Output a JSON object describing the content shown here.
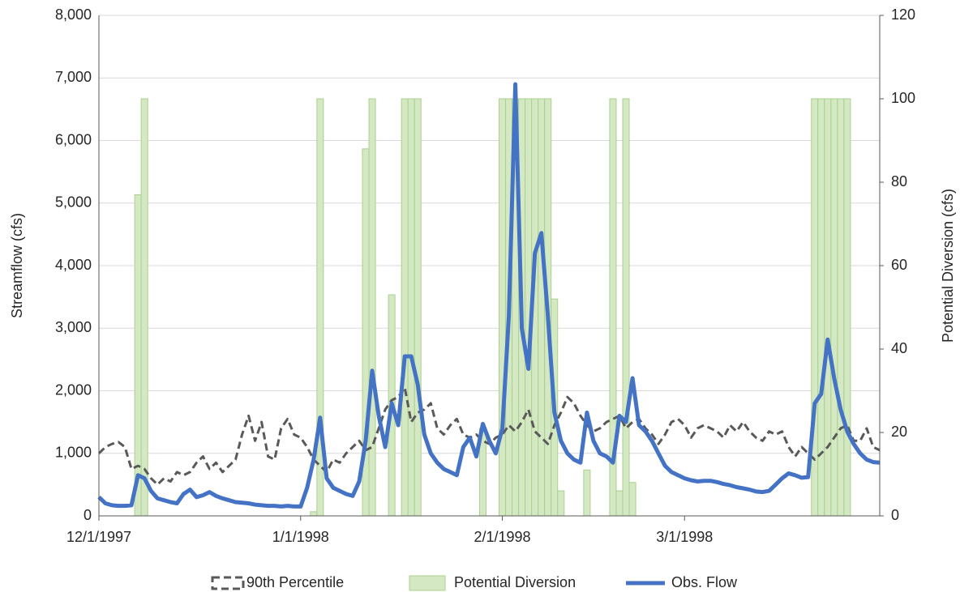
{
  "chart_data": {
    "type": "combo",
    "ylabel": "Streamflow (cfs)",
    "y2label": "Potential Diversion (cfs)",
    "x": [
      0,
      1,
      2,
      3,
      4,
      5,
      6,
      7,
      8,
      9,
      10,
      11,
      12,
      13,
      14,
      15,
      16,
      17,
      18,
      19,
      20,
      21,
      22,
      23,
      24,
      25,
      26,
      27,
      28,
      29,
      30,
      31,
      32,
      33,
      34,
      35,
      36,
      37,
      38,
      39,
      40,
      41,
      42,
      43,
      44,
      45,
      46,
      47,
      48,
      49,
      50,
      51,
      52,
      53,
      54,
      55,
      56,
      57,
      58,
      59,
      60,
      61,
      62,
      63,
      64,
      65,
      66,
      67,
      68,
      69,
      70,
      71,
      72,
      73,
      74,
      75,
      76,
      77,
      78,
      79,
      80,
      81,
      82,
      83,
      84,
      85,
      86,
      87,
      88,
      89,
      90,
      91,
      92,
      93,
      94,
      95,
      96,
      97,
      98,
      99,
      100,
      101,
      102,
      103,
      104,
      105,
      106,
      107,
      108,
      109,
      110,
      111,
      112,
      113,
      114,
      115,
      116,
      117,
      118,
      119,
      120
    ],
    "xlim": [
      0,
      120
    ],
    "xticks": [
      {
        "value": 0,
        "label": "12/1/1997"
      },
      {
        "value": 31,
        "label": "1/1/1998"
      },
      {
        "value": 62,
        "label": "2/1/1998"
      },
      {
        "value": 90,
        "label": "3/1/1998"
      }
    ],
    "ylim": [
      0,
      8000
    ],
    "yticks": [
      {
        "value": 0,
        "label": "0"
      },
      {
        "value": 1000,
        "label": "1,000"
      },
      {
        "value": 2000,
        "label": "2,000"
      },
      {
        "value": 3000,
        "label": "3,000"
      },
      {
        "value": 4000,
        "label": "4,000"
      },
      {
        "value": 5000,
        "label": "5,000"
      },
      {
        "value": 6000,
        "label": "6,000"
      },
      {
        "value": 7000,
        "label": "7,000"
      },
      {
        "value": 8000,
        "label": "8,000"
      }
    ],
    "y2lim": [
      0,
      120
    ],
    "y2ticks": [
      0,
      20,
      40,
      60,
      80,
      100,
      120
    ],
    "grid": true,
    "legend": "bottom",
    "series": [
      {
        "name": "90th Percentile",
        "kind": "line",
        "dashed": true,
        "color": "#595959",
        "values": [
          1000,
          1100,
          1150,
          1180,
          1100,
          750,
          800,
          750,
          600,
          500,
          600,
          550,
          700,
          650,
          700,
          850,
          950,
          750,
          850,
          700,
          800,
          900,
          1300,
          1600,
          1200,
          1500,
          950,
          900,
          1400,
          1550,
          1300,
          1250,
          1100,
          900,
          800,
          700,
          900,
          850,
          1000,
          1100,
          1200,
          1050,
          1100,
          1400,
          1700,
          1850,
          1900,
          2050,
          1500,
          1650,
          1700,
          1800,
          1400,
          1300,
          1450,
          1550,
          1300,
          1250,
          1300,
          1200,
          1150,
          1250,
          1300,
          1450,
          1350,
          1500,
          1700,
          1350,
          1250,
          1150,
          1450,
          1650,
          1900,
          1800,
          1600,
          1450,
          1350,
          1400,
          1500,
          1550,
          1600,
          1400,
          1500,
          1550,
          1400,
          1300,
          1150,
          1300,
          1500,
          1550,
          1450,
          1250,
          1400,
          1450,
          1400,
          1350,
          1250,
          1450,
          1350,
          1500,
          1350,
          1250,
          1200,
          1350,
          1300,
          1350,
          1100,
          950,
          1100,
          1000,
          900,
          1000,
          1100,
          1250,
          1400,
          1450,
          1200,
          1200,
          1400,
          1100,
          1050
        ]
      },
      {
        "name": "Potential Diversion",
        "kind": "bar",
        "axis": "y2",
        "color": "#d5e8c4",
        "edge": "#a9d18e",
        "values": [
          0,
          0,
          0,
          0,
          0,
          0,
          77,
          100,
          0,
          0,
          0,
          0,
          0,
          0,
          0,
          0,
          0,
          0,
          0,
          0,
          0,
          0,
          0,
          0,
          0,
          0,
          0,
          0,
          0,
          0,
          0,
          0,
          0,
          1,
          100,
          0,
          0,
          0,
          0,
          0,
          0,
          88,
          100,
          0,
          0,
          53,
          0,
          100,
          100,
          100,
          0,
          0,
          0,
          0,
          0,
          0,
          0,
          0,
          0,
          21,
          0,
          0,
          100,
          100,
          100,
          100,
          100,
          100,
          100,
          100,
          52,
          6,
          0,
          0,
          0,
          11,
          0,
          0,
          0,
          100,
          6,
          100,
          8,
          0,
          0,
          0,
          0,
          0,
          0,
          0,
          0,
          0,
          0,
          0,
          0,
          0,
          0,
          0,
          0,
          0,
          0,
          0,
          0,
          0,
          0,
          0,
          0,
          0,
          0,
          0,
          100,
          100,
          100,
          100,
          100,
          100,
          0,
          0,
          0,
          0,
          0
        ]
      },
      {
        "name": "Obs. Flow",
        "kind": "line",
        "color": "#4472c4",
        "values": [
          300,
          200,
          170,
          160,
          160,
          170,
          650,
          600,
          400,
          280,
          250,
          220,
          200,
          350,
          420,
          300,
          330,
          380,
          320,
          280,
          250,
          220,
          210,
          200,
          180,
          170,
          160,
          160,
          150,
          160,
          150,
          150,
          450,
          900,
          1570,
          600,
          450,
          400,
          350,
          320,
          550,
          1200,
          2320,
          1600,
          1100,
          1800,
          1450,
          2550,
          2550,
          2100,
          1300,
          1000,
          850,
          750,
          700,
          650,
          1100,
          1250,
          950,
          1470,
          1200,
          1000,
          1400,
          3200,
          6900,
          3000,
          2350,
          4200,
          4520,
          3200,
          1650,
          1200,
          1000,
          900,
          850,
          1650,
          1200,
          1000,
          950,
          850,
          1600,
          1500,
          2200,
          1450,
          1350,
          1200,
          1000,
          800,
          700,
          650,
          600,
          570,
          550,
          560,
          560,
          540,
          510,
          490,
          460,
          440,
          420,
          390,
          380,
          400,
          500,
          600,
          680,
          650,
          610,
          620,
          1800,
          1950,
          2820,
          2200,
          1700,
          1350,
          1150,
          1000,
          900,
          860,
          850
        ]
      }
    ]
  }
}
